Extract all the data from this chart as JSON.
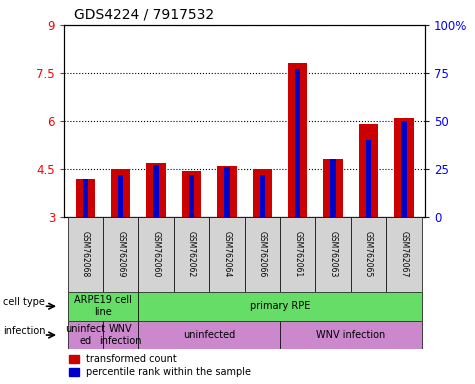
{
  "title": "GDS4224 / 7917532",
  "samples": [
    "GSM762068",
    "GSM762069",
    "GSM762060",
    "GSM762062",
    "GSM762064",
    "GSM762066",
    "GSM762061",
    "GSM762063",
    "GSM762065",
    "GSM762067"
  ],
  "red_values": [
    4.2,
    4.5,
    4.7,
    4.45,
    4.6,
    4.5,
    7.8,
    4.8,
    5.9,
    6.1
  ],
  "blue_values": [
    20,
    22,
    27,
    22,
    26,
    22,
    77,
    30,
    40,
    50
  ],
  "y_min": 3,
  "y_max": 9,
  "y_ticks": [
    3,
    4.5,
    6,
    7.5,
    9
  ],
  "y_right_ticks": [
    0,
    25,
    50,
    75,
    100
  ],
  "red_color": "#CC0000",
  "blue_color": "#0000CC",
  "sample_bg_color": "#D3D3D3",
  "cell_type_groups": [
    {
      "label": "ARPE19 cell\nline",
      "start": 0,
      "end": 2,
      "color": "#66DD66"
    },
    {
      "label": "primary RPE",
      "start": 2,
      "end": 10,
      "color": "#66DD66"
    }
  ],
  "infection_groups": [
    {
      "label": "uninfect\ned",
      "start": 0,
      "end": 1,
      "color": "#CC88CC"
    },
    {
      "label": "WNV\ninfection",
      "start": 1,
      "end": 2,
      "color": "#CC88CC"
    },
    {
      "label": "uninfected",
      "start": 2,
      "end": 6,
      "color": "#CC88CC"
    },
    {
      "label": "WNV infection",
      "start": 6,
      "end": 10,
      "color": "#CC88CC"
    }
  ]
}
